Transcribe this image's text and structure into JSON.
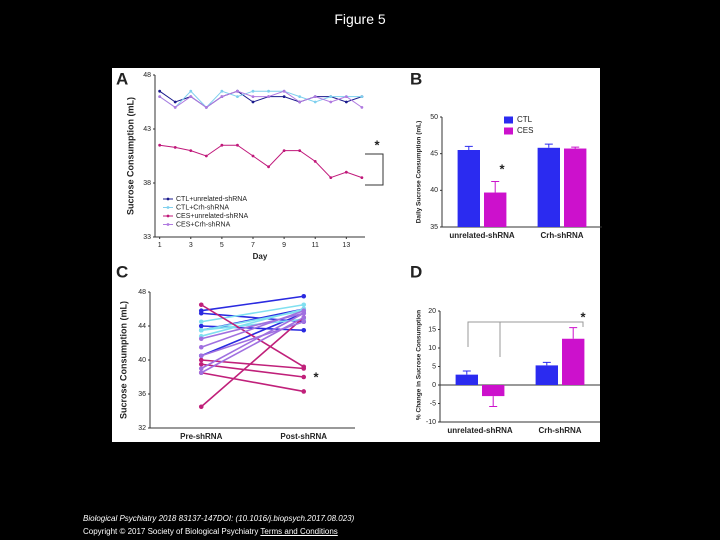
{
  "page": {
    "title": "Figure 5",
    "citation": "Biological Psychiatry 2018 83137-147DOI: (10.1016/j.biopsych.2017.08.023)",
    "copyright": "Copyright © 2017 Society of Biological Psychiatry",
    "link": "Terms and Conditions"
  },
  "chart_data": [
    {
      "type": "line",
      "panel_label": "A",
      "ylabel": "Sucrose Consumption (mL)",
      "xlabel": "Day",
      "annotation": "*",
      "x": [
        1,
        2,
        3,
        4,
        5,
        6,
        7,
        8,
        9,
        10,
        11,
        12,
        13,
        14
      ],
      "xlim": [
        0.7,
        14.2
      ],
      "xticks": [
        1,
        3,
        5,
        7,
        9,
        11,
        13
      ],
      "ylim": [
        33,
        48
      ],
      "yticks": [
        33,
        38,
        43,
        48
      ],
      "legend": "lower left",
      "series": [
        {
          "name": "CTL+unrelated-shRNA",
          "color": "#1a1a8c",
          "values": [
            46.5,
            45.5,
            46,
            45,
            46,
            46.5,
            45.5,
            46,
            46,
            45.5,
            46,
            46,
            45.5,
            46
          ]
        },
        {
          "name": "CTL+Crh-shRNA",
          "color": "#7fd0ee",
          "values": [
            46,
            45,
            46.5,
            45,
            46.5,
            46,
            46.5,
            46.5,
            46.5,
            46,
            45.5,
            46,
            46,
            46
          ]
        },
        {
          "name": "CES+unrelated-shRNA",
          "color": "#c0187a",
          "values": [
            41.5,
            41.3,
            41,
            40.5,
            41.5,
            41.5,
            40.5,
            39.5,
            41,
            41,
            40,
            38.5,
            39,
            38.5
          ]
        },
        {
          "name": "CES+Crh-shRNA",
          "color": "#b07ae0",
          "values": [
            46,
            45,
            46,
            45,
            46,
            46.5,
            46,
            46,
            46.5,
            45.5,
            46,
            45.5,
            46,
            45
          ]
        }
      ]
    },
    {
      "type": "bar",
      "panel_label": "B",
      "ylabel": "Daily Sucrose Consumption (mL)",
      "annotation": "*",
      "categories": [
        "unrelated-shRNA",
        "Crh-shRNA"
      ],
      "ylim": [
        35,
        50
      ],
      "yticks": [
        35,
        40,
        45,
        50
      ],
      "legend": "upper center",
      "series": [
        {
          "name": "CTL",
          "color": "#2b2bf0",
          "values": [
            45.5,
            45.8
          ],
          "errors": [
            0.5,
            0.5
          ]
        },
        {
          "name": "CES",
          "color": "#cc11cc",
          "values": [
            39.7,
            45.7
          ],
          "errors": [
            1.5,
            0.2
          ]
        }
      ]
    },
    {
      "type": "line",
      "panel_label": "C",
      "ylabel": "Sucrose Consumption (mL)",
      "annotation": "*",
      "categories": [
        "Pre-shRNA",
        "Post-shRNA"
      ],
      "ylim": [
        32,
        48
      ],
      "yticks": [
        32,
        36,
        40,
        44,
        48
      ],
      "series": [
        {
          "color": "#2a2ae0",
          "values": [
            45.8,
            47.5
          ]
        },
        {
          "color": "#2a2ae0",
          "values": [
            45.5,
            44.5
          ]
        },
        {
          "color": "#2a2ae0",
          "values": [
            40.5,
            45.5
          ]
        },
        {
          "color": "#2a2ae0",
          "values": [
            44,
            43.5
          ]
        },
        {
          "color": "#2a2ae0",
          "values": [
            43.5,
            46
          ]
        },
        {
          "color": "#80e0f0",
          "values": [
            44.5,
            46.5
          ]
        },
        {
          "color": "#80e0f0",
          "values": [
            43.5,
            45.8
          ]
        },
        {
          "color": "#80e0f0",
          "values": [
            42.8,
            46
          ]
        },
        {
          "color": "#80e0f0",
          "values": [
            43.5,
            44.8
          ]
        },
        {
          "color": "#c0207a",
          "values": [
            46.5,
            39.2
          ]
        },
        {
          "color": "#c0207a",
          "values": [
            40,
            39
          ]
        },
        {
          "color": "#c0207a",
          "values": [
            39.5,
            38
          ]
        },
        {
          "color": "#c0207a",
          "values": [
            38.5,
            36.3
          ]
        },
        {
          "color": "#c0207a",
          "values": [
            34.5,
            45
          ]
        },
        {
          "color": "#a070e0",
          "values": [
            42.5,
            45.5
          ]
        },
        {
          "color": "#a070e0",
          "values": [
            39,
            45.5
          ]
        },
        {
          "color": "#a070e0",
          "values": [
            38.5,
            45
          ]
        },
        {
          "color": "#a070e0",
          "values": [
            41.5,
            45.8
          ]
        },
        {
          "color": "#a070e0",
          "values": [
            40.5,
            44.5
          ]
        }
      ]
    },
    {
      "type": "bar",
      "panel_label": "D",
      "ylabel": "% Change in Sucrose Consumption",
      "annotation": "*",
      "categories": [
        "unrelated-shRNA",
        "Crh-shRNA"
      ],
      "ylim": [
        -10,
        20
      ],
      "yticks": [
        -10,
        -5,
        0,
        5,
        10,
        15,
        20
      ],
      "series": [
        {
          "color": "#2b2bf0",
          "values": [
            2.8,
            5.3
          ],
          "errors": [
            1,
            0.8
          ]
        },
        {
          "color": "#cc11cc",
          "values": [
            -3,
            12.5
          ],
          "errors": [
            2.8,
            3
          ]
        }
      ]
    }
  ]
}
